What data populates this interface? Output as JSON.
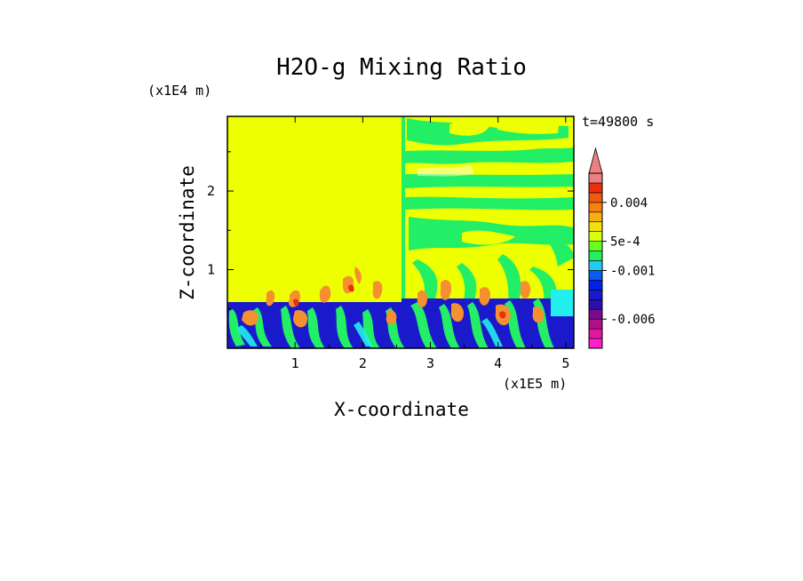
{
  "chart_data": {
    "type": "heatmap",
    "title": "H2O-g Mixing Ratio",
    "xlabel": "X-coordinate",
    "ylabel": "Z-coordinate",
    "x_units": "(x1E5 m)",
    "y_units": "(x1E4 m)",
    "time_label": "t=49800 s",
    "xlim": [
      0,
      5.12
    ],
    "ylim": [
      0,
      2.95
    ],
    "x_ticks": [
      1,
      2,
      3,
      4,
      5
    ],
    "y_ticks": [
      1,
      2
    ],
    "colorbar": {
      "levels": [
        "-0.009",
        "-0.008",
        "-0.007",
        "-0.006",
        "-0.005",
        "-0.004",
        "-0.003",
        "-0.002",
        "-0.001",
        "-5e-4",
        "0",
        "5e-4",
        "0.001",
        "0.002",
        "0.003",
        "0.004",
        "0.005",
        "0.006"
      ],
      "colors": [
        "#ff1fcc",
        "#e0189c",
        "#b0108a",
        "#7a0a8c",
        "#2a10a8",
        "#1a1acc",
        "#0022ee",
        "#0a5cf0",
        "#22ccf0",
        "#22ee66",
        "#66ff22",
        "#d8ff10",
        "#f0e010",
        "#f6b010",
        "#f68010",
        "#f05a10",
        "#e83010",
        "#ec8080"
      ],
      "labels": [
        {
          "text": "0.004",
          "level": "0.004"
        },
        {
          "text": "5e-4",
          "level": "5e-4"
        },
        {
          "text": "-0.001",
          "level": "-0.001"
        },
        {
          "text": "-0.006",
          "level": "-0.006"
        }
      ],
      "extend": "max"
    },
    "regions": [
      {
        "description": "upper left domain",
        "value": "0 to 5e-4",
        "color": "#eeff00"
      },
      {
        "description": "upper right domain",
        "value": "mixed -5e-4 to 5e-4",
        "color": "#22ee66"
      },
      {
        "description": "boundary layer",
        "value": "-0.003 to 0.004",
        "color": "#1a1acc"
      }
    ]
  },
  "colors": {
    "background": "#ffffff",
    "frame": "#000000",
    "yellow": "#eeff00",
    "green": "#22ee66",
    "lime": "#88ff22",
    "blue": "#1a1acc",
    "cyan": "#22eeee",
    "orange": "#f59030"
  }
}
